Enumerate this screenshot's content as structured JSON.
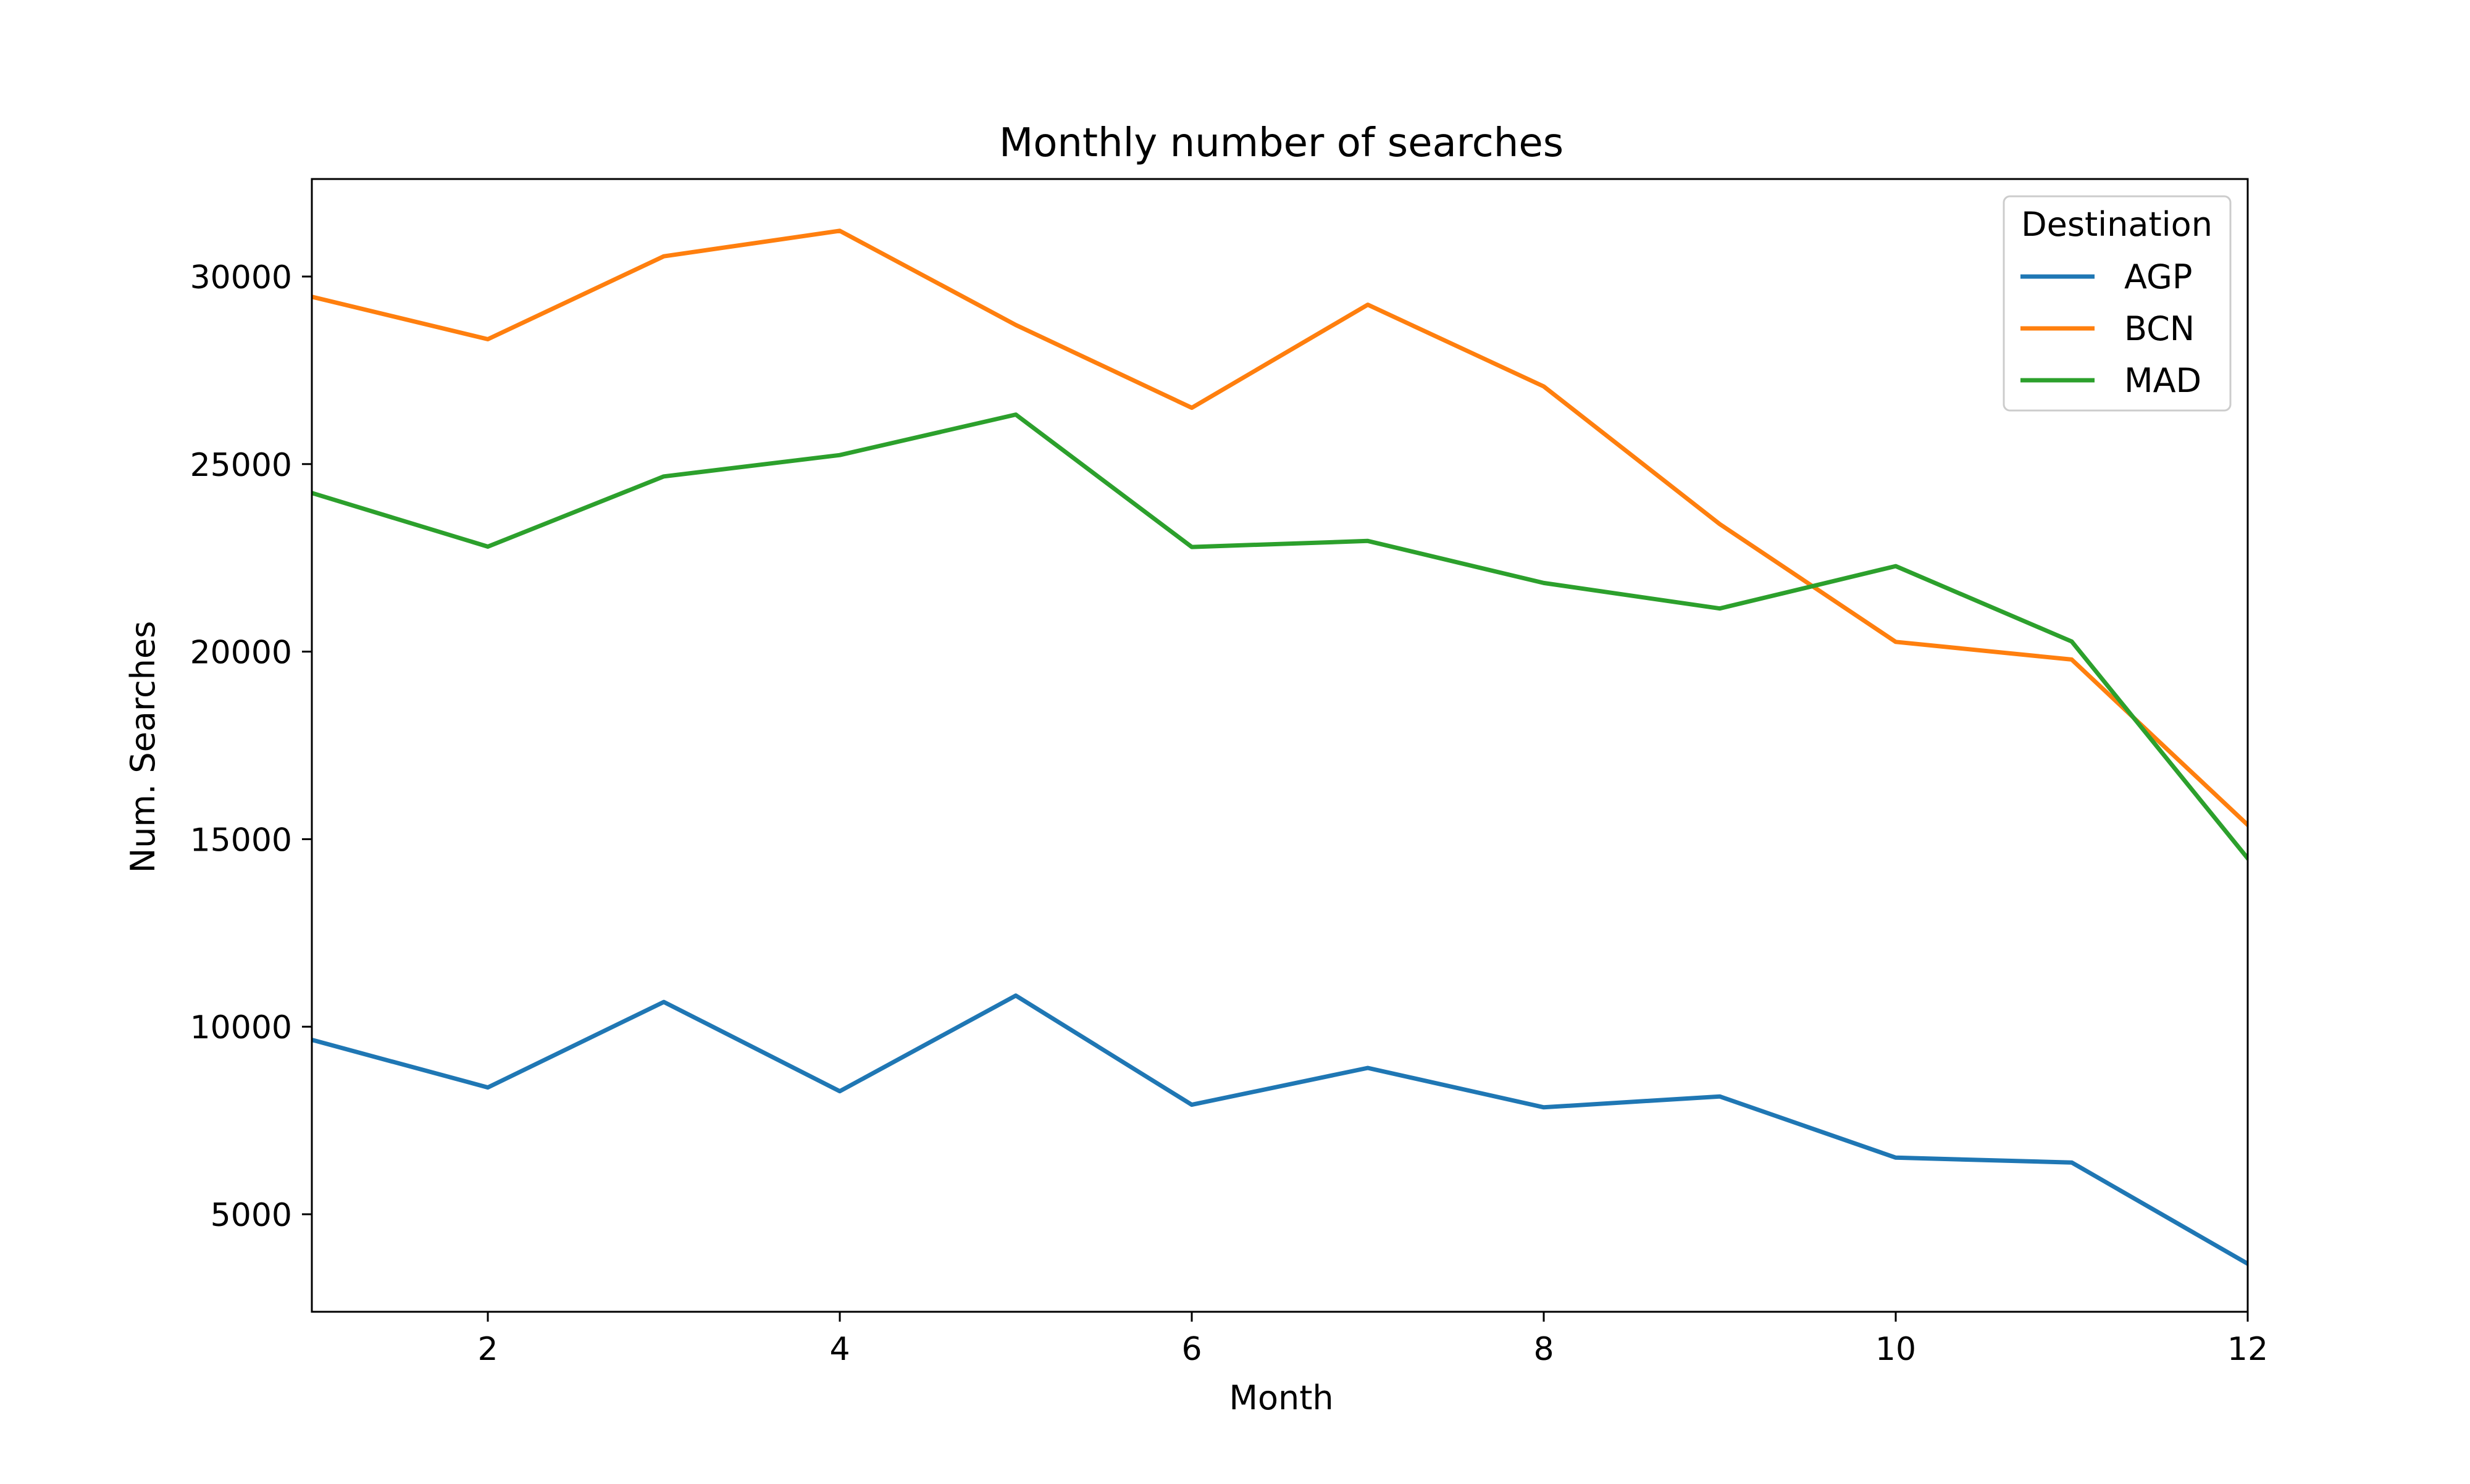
{
  "colors": {
    "AGP": "#1f77b4",
    "BCN": "#ff7f0e",
    "MAD": "#2ca02c",
    "axis": "#000000",
    "background": "#ffffff",
    "legend_border": "#cccccc"
  },
  "chart_data": {
    "type": "line",
    "title": "Monthly number of searches",
    "xlabel": "Month",
    "ylabel": "Num. Searches",
    "x": [
      1,
      2,
      3,
      4,
      5,
      6,
      7,
      8,
      9,
      10,
      11,
      12
    ],
    "xlim": [
      1,
      12
    ],
    "ylim": [
      2400,
      32600
    ],
    "x_ticks": [
      2,
      4,
      6,
      8,
      10,
      12
    ],
    "y_ticks": [
      5000,
      10000,
      15000,
      20000,
      25000,
      30000
    ],
    "grid": false,
    "legend": {
      "title": "Destination",
      "placement": "top-right"
    },
    "series": [
      {
        "name": "AGP",
        "values": [
          9650,
          8380,
          10660,
          8280,
          10830,
          7920,
          8900,
          7850,
          8140,
          6510,
          6380,
          3680
        ]
      },
      {
        "name": "BCN",
        "values": [
          29460,
          28330,
          30540,
          31220,
          28710,
          26500,
          29250,
          27070,
          23400,
          20260,
          19790,
          15380
        ]
      },
      {
        "name": "MAD",
        "values": [
          24230,
          22800,
          24670,
          25240,
          26320,
          22790,
          22950,
          21830,
          21150,
          22280,
          20270,
          14490
        ]
      }
    ]
  }
}
